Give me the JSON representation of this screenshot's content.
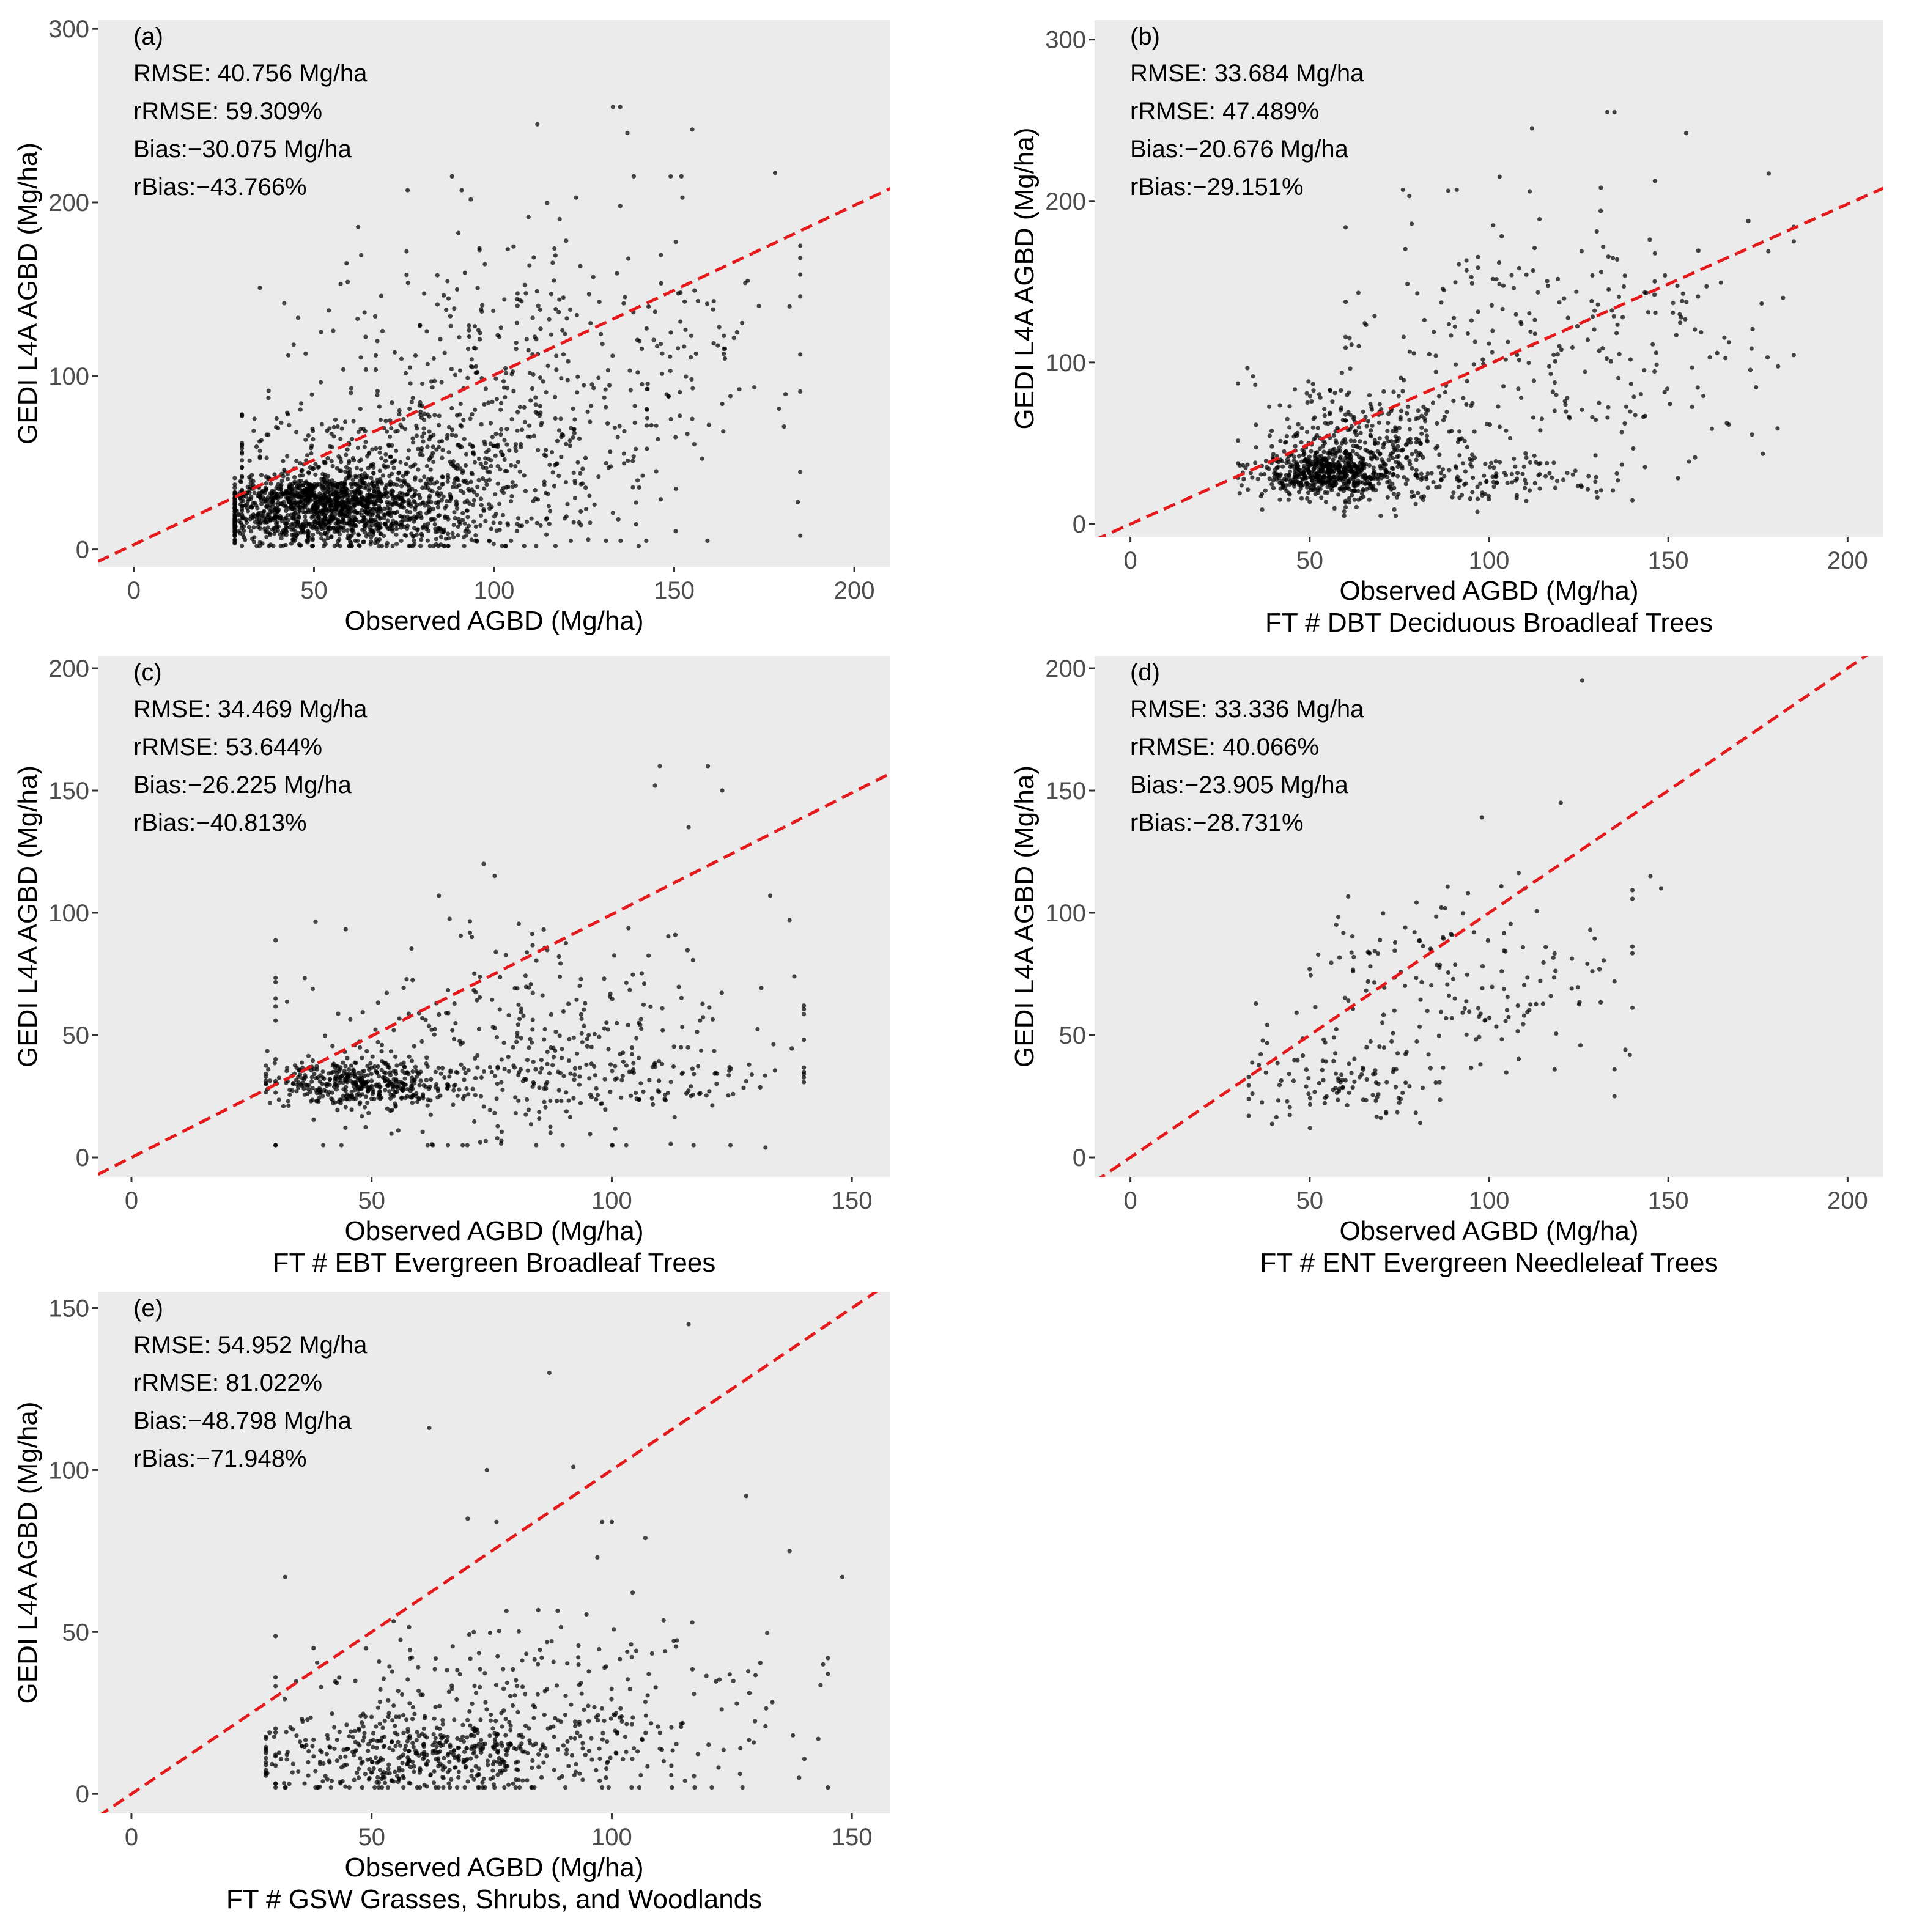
{
  "chart_data": [
    {
      "id": "a",
      "type": "scatter",
      "panel_label": "(a)",
      "xlabel": "Observed AGBD (Mg/ha)",
      "subtitle": "",
      "ylabel": "GEDI L4A AGBD (Mg/ha)",
      "xlim": [
        -10,
        210
      ],
      "ylim": [
        -10,
        305
      ],
      "xticks": [
        0,
        50,
        100,
        150,
        200
      ],
      "yticks": [
        0,
        100,
        200,
        300
      ],
      "stats": [
        "RMSE: 40.756 Mg/ha",
        "rRMSE: 59.309%",
        "Bias:−30.075 Mg/ha",
        "rBias:−43.766%"
      ],
      "reference_line": {
        "style": "dashed",
        "color": "#e41a1c",
        "x": [
          -10,
          210
        ],
        "y": [
          -7.0,
          208.0
        ]
      },
      "point_clusters": [
        {
          "n": 700,
          "x_center": 52,
          "x_spread": 14,
          "x_min": 28,
          "x_max": 100,
          "y_center": 30,
          "y_spread": 6,
          "y_min": 15,
          "y_max": 60
        },
        {
          "n": 500,
          "x_center": 55,
          "x_spread": 18,
          "x_min": 28,
          "x_max": 120,
          "y_center": 14,
          "y_spread": 6,
          "y_min": 2,
          "y_max": 30
        },
        {
          "n": 700,
          "x_center": 75,
          "x_spread": 26,
          "x_min": 30,
          "x_max": 145,
          "y_center": 40,
          "y_spread": 22,
          "y_min": 2,
          "y_max": 115
        },
        {
          "n": 450,
          "x_center": 110,
          "x_spread": 32,
          "x_min": 35,
          "x_max": 185,
          "y_center": 95,
          "y_spread": 45,
          "y_min": 5,
          "y_max": 215
        }
      ],
      "points": [
        [
          133,
          255
        ],
        [
          135,
          255
        ],
        [
          112,
          245
        ],
        [
          155,
          242
        ],
        [
          137,
          240
        ],
        [
          149,
          215
        ],
        [
          152,
          215
        ],
        [
          178,
          217
        ],
        [
          76,
          207
        ],
        [
          91,
          207
        ],
        [
          185,
          175
        ],
        [
          182,
          140
        ]
      ]
    },
    {
      "id": "b",
      "type": "scatter",
      "panel_label": "(b)",
      "xlabel": "Observed AGBD (Mg/ha)",
      "subtitle": "FT # DBT Deciduous Broadleaf Trees",
      "ylabel": "GEDI L4A AGBD (Mg/ha)",
      "xlim": [
        -10,
        210
      ],
      "ylim": [
        -8,
        312
      ],
      "xticks": [
        0,
        50,
        100,
        150,
        200
      ],
      "yticks": [
        0,
        100,
        200,
        300
      ],
      "stats": [
        "RMSE: 33.684 Mg/ha",
        "rRMSE: 47.489%",
        "Bias:−20.676 Mg/ha",
        "rBias:−29.151%"
      ],
      "reference_line": {
        "style": "dashed",
        "color": "#e41a1c",
        "x": [
          -10,
          210
        ],
        "y": [
          -10.0,
          208.0
        ]
      },
      "point_clusters": [
        {
          "n": 500,
          "x_center": 55,
          "x_spread": 9,
          "x_min": 30,
          "x_max": 80,
          "y_center": 32,
          "y_spread": 7,
          "y_min": 15,
          "y_max": 60
        },
        {
          "n": 350,
          "x_center": 65,
          "x_spread": 15,
          "x_min": 30,
          "x_max": 110,
          "y_center": 50,
          "y_spread": 20,
          "y_min": 5,
          "y_max": 110
        },
        {
          "n": 150,
          "x_center": 95,
          "x_spread": 20,
          "x_min": 60,
          "x_max": 140,
          "y_center": 28,
          "y_spread": 8,
          "y_min": 5,
          "y_max": 50
        },
        {
          "n": 250,
          "x_center": 120,
          "x_spread": 30,
          "x_min": 60,
          "x_max": 185,
          "y_center": 110,
          "y_spread": 45,
          "y_min": 10,
          "y_max": 215
        }
      ],
      "points": [
        [
          133,
          255
        ],
        [
          135,
          255
        ],
        [
          112,
          245
        ],
        [
          155,
          242
        ],
        [
          178,
          217
        ],
        [
          76,
          207
        ],
        [
          91,
          207
        ],
        [
          185,
          175
        ],
        [
          182,
          140
        ]
      ]
    },
    {
      "id": "c",
      "type": "scatter",
      "panel_label": "(c)",
      "xlabel": "Observed AGBD (Mg/ha)",
      "subtitle": "FT # EBT Evergreen Broadleaf Trees",
      "ylabel": "GEDI L4A AGBD (Mg/ha)",
      "xlim": [
        -7,
        158
      ],
      "ylim": [
        -8,
        205
      ],
      "xticks": [
        0,
        50,
        100,
        150
      ],
      "yticks": [
        0,
        50,
        100,
        150,
        200
      ],
      "stats": [
        "RMSE: 34.469 Mg/ha",
        "rRMSE: 53.644%",
        "Bias:−26.225 Mg/ha",
        "rBias:−40.813%"
      ],
      "reference_line": {
        "style": "dashed",
        "color": "#e41a1c",
        "x": [
          -7,
          158
        ],
        "y": [
          -7.0,
          157.0
        ]
      },
      "point_clusters": [
        {
          "n": 400,
          "x_center": 48,
          "x_spread": 10,
          "x_min": 28,
          "x_max": 80,
          "y_center": 30,
          "y_spread": 5,
          "y_min": 10,
          "y_max": 50
        },
        {
          "n": 350,
          "x_center": 80,
          "x_spread": 25,
          "x_min": 30,
          "x_max": 140,
          "y_center": 45,
          "y_spread": 25,
          "y_min": 5,
          "y_max": 120
        },
        {
          "n": 120,
          "x_center": 100,
          "x_spread": 22,
          "x_min": 55,
          "x_max": 140,
          "y_center": 30,
          "y_spread": 6,
          "y_min": 15,
          "y_max": 45
        }
      ],
      "points": [
        [
          110,
          160
        ],
        [
          120,
          160
        ],
        [
          109,
          152
        ],
        [
          123,
          150
        ],
        [
          116,
          135
        ],
        [
          133,
          107
        ],
        [
          137,
          97
        ],
        [
          64,
          107
        ],
        [
          138,
          74
        ],
        [
          132,
          4
        ]
      ]
    },
    {
      "id": "d",
      "type": "scatter",
      "panel_label": "(d)",
      "xlabel": "Observed AGBD (Mg/ha)",
      "subtitle": "FT # ENT Evergreen Needleleaf Trees",
      "ylabel": "GEDI L4A AGBD (Mg/ha)",
      "xlim": [
        -10,
        210
      ],
      "ylim": [
        -8,
        205
      ],
      "xticks": [
        0,
        50,
        100,
        150,
        200
      ],
      "yticks": [
        0,
        50,
        100,
        150,
        200
      ],
      "stats": [
        "RMSE: 33.336 Mg/ha",
        "rRMSE: 40.066%",
        "Bias:−23.905 Mg/ha",
        "rBias:−28.731%"
      ],
      "reference_line": {
        "style": "dashed",
        "color": "#e41a1c",
        "x": [
          -10,
          210
        ],
        "y": [
          -10.0,
          210.0
        ]
      },
      "point_clusters": [
        {
          "n": 160,
          "x_center": 92,
          "x_spread": 22,
          "x_min": 35,
          "x_max": 140,
          "y_center": 72,
          "y_spread": 20,
          "y_min": 15,
          "y_max": 120
        },
        {
          "n": 120,
          "x_center": 60,
          "x_spread": 14,
          "x_min": 33,
          "x_max": 95,
          "y_center": 32,
          "y_spread": 9,
          "y_min": 12,
          "y_max": 60
        }
      ],
      "points": [
        [
          126,
          195
        ],
        [
          120,
          145
        ],
        [
          98,
          139
        ],
        [
          148,
          110
        ],
        [
          145,
          115
        ],
        [
          135,
          72
        ],
        [
          135,
          36
        ],
        [
          135,
          25
        ],
        [
          110,
          110
        ]
      ]
    },
    {
      "id": "e",
      "type": "scatter",
      "panel_label": "(e)",
      "xlabel": "Observed AGBD (Mg/ha)",
      "subtitle": "FT # GSW Grasses, Shrubs, and Woodlands",
      "ylabel": "GEDI L4A AGBD (Mg/ha)",
      "xlim": [
        -7,
        158
      ],
      "ylim": [
        -6,
        155
      ],
      "xticks": [
        0,
        50,
        100,
        150
      ],
      "yticks": [
        0,
        50,
        100,
        150
      ],
      "stats": [
        "RMSE: 54.952 Mg/ha",
        "rRMSE: 81.022%",
        "Bias:−48.798 Mg/ha",
        "rBias:−71.948%"
      ],
      "reference_line": {
        "style": "dashed",
        "color": "#e41a1c",
        "x": [
          -7,
          158
        ],
        "y": [
          -7.0,
          158.0
        ]
      },
      "point_clusters": [
        {
          "n": 450,
          "x_center": 62,
          "x_spread": 18,
          "x_min": 28,
          "x_max": 110,
          "y_center": 12,
          "y_spread": 6,
          "y_min": 2,
          "y_max": 30
        },
        {
          "n": 350,
          "x_center": 80,
          "x_spread": 28,
          "x_min": 30,
          "x_max": 145,
          "y_center": 25,
          "y_spread": 15,
          "y_min": 2,
          "y_max": 65
        }
      ],
      "points": [
        [
          116,
          145
        ],
        [
          87,
          130
        ],
        [
          62,
          113
        ],
        [
          128,
          92
        ],
        [
          92,
          101
        ],
        [
          74,
          100
        ],
        [
          107,
          79
        ],
        [
          137,
          75
        ],
        [
          148,
          67
        ],
        [
          32,
          67
        ],
        [
          98,
          84
        ],
        [
          100,
          84
        ],
        [
          70,
          85
        ],
        [
          76,
          84
        ],
        [
          97,
          73
        ],
        [
          144,
          40
        ],
        [
          143,
          17
        ],
        [
          139,
          5
        ]
      ]
    }
  ]
}
